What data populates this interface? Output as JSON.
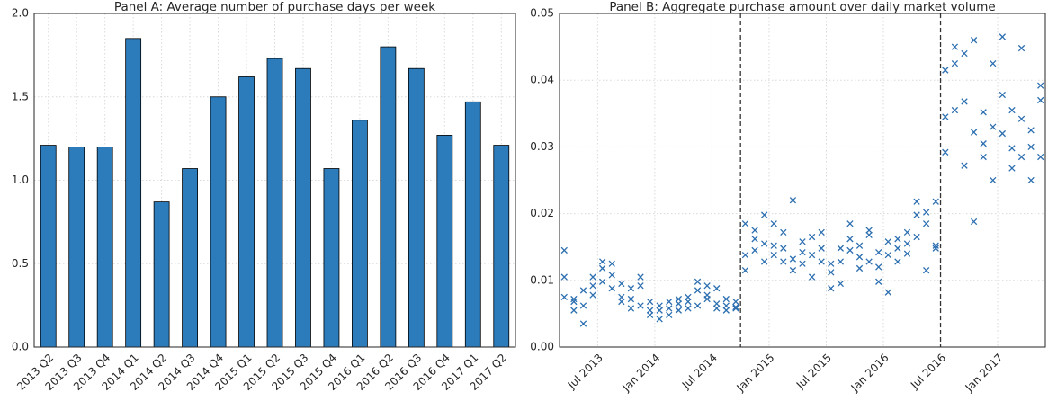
{
  "chart_data": [
    {
      "type": "bar",
      "title": "Panel A: Average number of purchase days per week",
      "categories": [
        "2013 Q2",
        "2013 Q3",
        "2013 Q4",
        "2014 Q1",
        "2014 Q2",
        "2014 Q3",
        "2014 Q4",
        "2015 Q1",
        "2015 Q2",
        "2015 Q3",
        "2015 Q4",
        "2016 Q1",
        "2016 Q2",
        "2016 Q3",
        "2016 Q4",
        "2017 Q1",
        "2017 Q2"
      ],
      "values": [
        1.21,
        1.2,
        1.2,
        1.85,
        0.87,
        1.07,
        1.5,
        1.62,
        1.73,
        1.67,
        1.07,
        1.36,
        1.8,
        1.67,
        1.27,
        1.47,
        1.21
      ],
      "color": "#2c7bba",
      "ylim": [
        0,
        2
      ],
      "yticks": [
        {
          "value": 0,
          "label": "0.0"
        },
        0.5,
        {
          "value": 1,
          "label": "1.0"
        },
        1.5,
        {
          "value": 2,
          "label": "2.0"
        }
      ],
      "grid": true
    },
    {
      "type": "scatter",
      "title": "Panel B: Aggregate purchase amount over daily market volume",
      "color": "#2c6fb0",
      "x": [
        "2013-03",
        "2013-03",
        "2013-03",
        "2013-04",
        "2013-04",
        "2013-04",
        "2013-05",
        "2013-05",
        "2013-05",
        "2013-06",
        "2013-06",
        "2013-06",
        "2013-07",
        "2013-07",
        "2013-07",
        "2013-08",
        "2013-08",
        "2013-08",
        "2013-09",
        "2013-09",
        "2013-09",
        "2013-10",
        "2013-10",
        "2013-10",
        "2013-11",
        "2013-11",
        "2013-11",
        "2013-12",
        "2013-12",
        "2013-12",
        "2014-01",
        "2014-01",
        "2014-01",
        "2014-02",
        "2014-02",
        "2014-02",
        "2014-03",
        "2014-03",
        "2014-03",
        "2014-04",
        "2014-04",
        "2014-04",
        "2014-05",
        "2014-05",
        "2014-05",
        "2014-06",
        "2014-06",
        "2014-06",
        "2014-07",
        "2014-07",
        "2014-07",
        "2014-08",
        "2014-08",
        "2014-08",
        "2014-09",
        "2014-09",
        "2014-09",
        "2014-10",
        "2014-10",
        "2014-10",
        "2014-11",
        "2014-11",
        "2014-11",
        "2014-12",
        "2014-12",
        "2014-12",
        "2015-01",
        "2015-01",
        "2015-01",
        "2015-02",
        "2015-02",
        "2015-02",
        "2015-03",
        "2015-03",
        "2015-03",
        "2015-04",
        "2015-04",
        "2015-04",
        "2015-05",
        "2015-05",
        "2015-05",
        "2015-06",
        "2015-06",
        "2015-06",
        "2015-07",
        "2015-07",
        "2015-07",
        "2015-08",
        "2015-08",
        "2015-08",
        "2015-09",
        "2015-09",
        "2015-09",
        "2015-10",
        "2015-10",
        "2015-10",
        "2015-11",
        "2015-11",
        "2015-11",
        "2015-12",
        "2015-12",
        "2015-12",
        "2016-01",
        "2016-01",
        "2016-01",
        "2016-02",
        "2016-02",
        "2016-02",
        "2016-03",
        "2016-03",
        "2016-03",
        "2016-04",
        "2016-04",
        "2016-04",
        "2016-05",
        "2016-05",
        "2016-05",
        "2016-06",
        "2016-06",
        "2016-06",
        "2016-07",
        "2016-07",
        "2016-07",
        "2016-08",
        "2016-08",
        "2016-08",
        "2016-09",
        "2016-09",
        "2016-09",
        "2016-10",
        "2016-10",
        "2016-10",
        "2016-11",
        "2016-11",
        "2016-11",
        "2016-12",
        "2016-12",
        "2016-12",
        "2017-01",
        "2017-01",
        "2017-01",
        "2017-02",
        "2017-02",
        "2017-02",
        "2017-03",
        "2017-03",
        "2017-03",
        "2017-04",
        "2017-04",
        "2017-04",
        "2017-05",
        "2017-05",
        "2017-05"
      ],
      "values": [
        0.0145,
        0.0105,
        0.0075,
        0.0072,
        0.0055,
        0.0068,
        0.0035,
        0.0062,
        0.0085,
        0.0092,
        0.0078,
        0.0105,
        0.0128,
        0.0118,
        0.0098,
        0.0125,
        0.0108,
        0.0088,
        0.0075,
        0.0095,
        0.0068,
        0.0072,
        0.0058,
        0.0088,
        0.0105,
        0.0092,
        0.0062,
        0.0055,
        0.0048,
        0.0068,
        0.0042,
        0.0062,
        0.0055,
        0.0068,
        0.0048,
        0.0058,
        0.0072,
        0.0055,
        0.0065,
        0.0075,
        0.0058,
        0.0068,
        0.0062,
        0.0085,
        0.0098,
        0.0092,
        0.0078,
        0.0072,
        0.0088,
        0.0065,
        0.0058,
        0.0072,
        0.0062,
        0.0055,
        0.0068,
        0.006,
        0.0058,
        0.0185,
        0.0115,
        0.0138,
        0.0175,
        0.0162,
        0.0145,
        0.0155,
        0.0128,
        0.0198,
        0.0152,
        0.0185,
        0.0138,
        0.0128,
        0.0172,
        0.0148,
        0.0115,
        0.0132,
        0.022,
        0.0158,
        0.0125,
        0.0142,
        0.0165,
        0.0138,
        0.0105,
        0.0172,
        0.0148,
        0.0128,
        0.0125,
        0.0112,
        0.0088,
        0.0148,
        0.0128,
        0.0095,
        0.0185,
        0.0145,
        0.0162,
        0.0135,
        0.0152,
        0.0118,
        0.0175,
        0.0128,
        0.0168,
        0.0142,
        0.012,
        0.0098,
        0.0158,
        0.0138,
        0.0082,
        0.0148,
        0.0162,
        0.0128,
        0.0172,
        0.0155,
        0.014,
        0.0218,
        0.0198,
        0.0165,
        0.0202,
        0.0185,
        0.0115,
        0.0218,
        0.0152,
        0.0148,
        0.0345,
        0.0292,
        0.0415,
        0.045,
        0.0355,
        0.0425,
        0.044,
        0.0368,
        0.0272,
        0.046,
        0.0322,
        0.0188,
        0.0305,
        0.0352,
        0.0285,
        0.025,
        0.0425,
        0.033,
        0.0465,
        0.0378,
        0.032,
        0.0355,
        0.0298,
        0.0268,
        0.0448,
        0.0342,
        0.0285,
        0.0325,
        0.025,
        0.03,
        0.037,
        0.0285,
        0.0392
      ],
      "xlim": [
        "2013-03",
        "2017-06"
      ],
      "xticks": [
        {
          "value": "2013-07",
          "label": "Jul 2013"
        },
        {
          "value": "2014-01",
          "label": "Jan 2014"
        },
        {
          "value": "2014-07",
          "label": "Jul 2014"
        },
        {
          "value": "2015-01",
          "label": "Jan 2015"
        },
        {
          "value": "2015-07",
          "label": "Jul 2015"
        },
        {
          "value": "2016-01",
          "label": "Jan 2016"
        },
        {
          "value": "2016-07",
          "label": "Jul 2016"
        },
        {
          "value": "2017-01",
          "label": "Jan 2017"
        }
      ],
      "ylim": [
        0,
        0.05
      ],
      "yticks": [
        {
          "value": 0,
          "label": "0.00"
        },
        0.01,
        0.02,
        0.03,
        0.04,
        0.05
      ],
      "vlines": [
        "2014-10",
        "2016-07"
      ],
      "grid": true
    }
  ]
}
